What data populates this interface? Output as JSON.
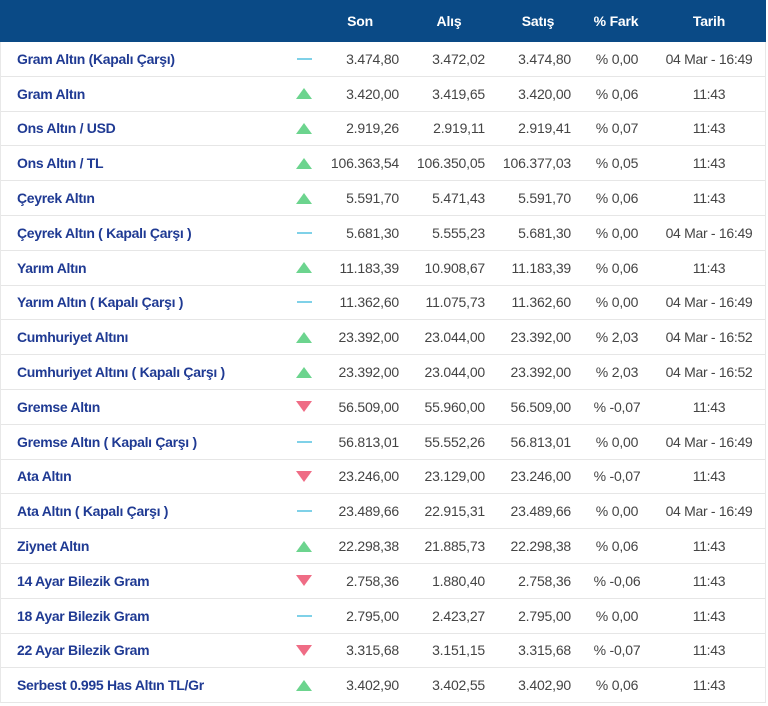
{
  "colors": {
    "header_bg": "#0a4a86",
    "name_text": "#1f3a93",
    "up": "#6cd48e",
    "down": "#ef6c85",
    "flat": "#7fd1e8"
  },
  "header": {
    "son": "Son",
    "alis": "Alış",
    "satis": "Satış",
    "fark": "% Fark",
    "tarih": "Tarih"
  },
  "rows": [
    {
      "name": "Gram Altın (Kapalı Çarşı)",
      "trend": "flat",
      "son": "3.474,80",
      "alis": "3.472,02",
      "satis": "3.474,80",
      "fark": "% 0,00",
      "tarih": "04 Mar - 16:49"
    },
    {
      "name": "Gram Altın",
      "trend": "up",
      "son": "3.420,00",
      "alis": "3.419,65",
      "satis": "3.420,00",
      "fark": "% 0,06",
      "tarih": "11:43"
    },
    {
      "name": "Ons Altın / USD",
      "trend": "up",
      "son": "2.919,26",
      "alis": "2.919,11",
      "satis": "2.919,41",
      "fark": "% 0,07",
      "tarih": "11:43"
    },
    {
      "name": "Ons Altın / TL",
      "trend": "up",
      "son": "106.363,54",
      "alis": "106.350,05",
      "satis": "106.377,03",
      "fark": "% 0,05",
      "tarih": "11:43"
    },
    {
      "name": "Çeyrek Altın",
      "trend": "up",
      "son": "5.591,70",
      "alis": "5.471,43",
      "satis": "5.591,70",
      "fark": "% 0,06",
      "tarih": "11:43"
    },
    {
      "name": "Çeyrek Altın ( Kapalı Çarşı )",
      "trend": "flat",
      "son": "5.681,30",
      "alis": "5.555,23",
      "satis": "5.681,30",
      "fark": "% 0,00",
      "tarih": "04 Mar - 16:49"
    },
    {
      "name": "Yarım Altın",
      "trend": "up",
      "son": "11.183,39",
      "alis": "10.908,67",
      "satis": "11.183,39",
      "fark": "% 0,06",
      "tarih": "11:43"
    },
    {
      "name": "Yarım Altın ( Kapalı Çarşı )",
      "trend": "flat",
      "son": "11.362,60",
      "alis": "11.075,73",
      "satis": "11.362,60",
      "fark": "% 0,00",
      "tarih": "04 Mar - 16:49"
    },
    {
      "name": "Cumhuriyet Altını",
      "trend": "up",
      "son": "23.392,00",
      "alis": "23.044,00",
      "satis": "23.392,00",
      "fark": "% 2,03",
      "tarih": "04 Mar - 16:52"
    },
    {
      "name": "Cumhuriyet Altını ( Kapalı Çarşı )",
      "trend": "up",
      "son": "23.392,00",
      "alis": "23.044,00",
      "satis": "23.392,00",
      "fark": "% 2,03",
      "tarih": "04 Mar - 16:52"
    },
    {
      "name": "Gremse Altın",
      "trend": "down",
      "son": "56.509,00",
      "alis": "55.960,00",
      "satis": "56.509,00",
      "fark": "% -0,07",
      "tarih": "11:43"
    },
    {
      "name": "Gremse Altın ( Kapalı Çarşı )",
      "trend": "flat",
      "son": "56.813,01",
      "alis": "55.552,26",
      "satis": "56.813,01",
      "fark": "% 0,00",
      "tarih": "04 Mar - 16:49"
    },
    {
      "name": "Ata Altın",
      "trend": "down",
      "son": "23.246,00",
      "alis": "23.129,00",
      "satis": "23.246,00",
      "fark": "% -0,07",
      "tarih": "11:43"
    },
    {
      "name": "Ata Altın ( Kapalı Çarşı )",
      "trend": "flat",
      "son": "23.489,66",
      "alis": "22.915,31",
      "satis": "23.489,66",
      "fark": "% 0,00",
      "tarih": "04 Mar - 16:49"
    },
    {
      "name": "Ziynet Altın",
      "trend": "up",
      "son": "22.298,38",
      "alis": "21.885,73",
      "satis": "22.298,38",
      "fark": "% 0,06",
      "tarih": "11:43"
    },
    {
      "name": "14 Ayar Bilezik Gram",
      "trend": "down",
      "son": "2.758,36",
      "alis": "1.880,40",
      "satis": "2.758,36",
      "fark": "% -0,06",
      "tarih": "11:43"
    },
    {
      "name": "18 Ayar Bilezik Gram",
      "trend": "flat",
      "son": "2.795,00",
      "alis": "2.423,27",
      "satis": "2.795,00",
      "fark": "% 0,00",
      "tarih": "11:43"
    },
    {
      "name": "22 Ayar Bilezik Gram",
      "trend": "down",
      "son": "3.315,68",
      "alis": "3.151,15",
      "satis": "3.315,68",
      "fark": "% -0,07",
      "tarih": "11:43"
    },
    {
      "name": "Serbest 0.995 Has Altın TL/Gr",
      "trend": "up",
      "son": "3.402,90",
      "alis": "3.402,55",
      "satis": "3.402,90",
      "fark": "% 0,06",
      "tarih": "11:43"
    }
  ]
}
